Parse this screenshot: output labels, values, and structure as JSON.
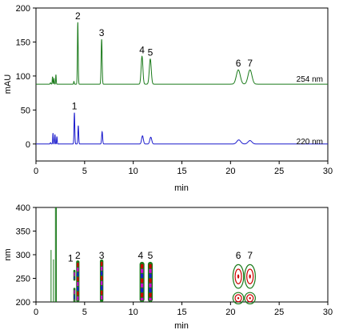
{
  "chart_data": [
    {
      "type": "line",
      "xlabel": "min",
      "ylabel": "mAU",
      "xlim": [
        0,
        30
      ],
      "ylim": [
        -25,
        200
      ],
      "xticks": [
        "0",
        "5",
        "10",
        "15",
        "20",
        "25",
        "30"
      ],
      "yticks": [
        "0",
        "50",
        "100",
        "150",
        "200"
      ],
      "grid": false,
      "series": [
        {
          "name": "254 nm",
          "color": "#1a7a1a",
          "baseline": 88,
          "peaks": [
            {
              "t": 1.5,
              "h": 2,
              "w": 0.04
            },
            {
              "t": 1.7,
              "h": 11,
              "w": 0.03
            },
            {
              "t": 1.85,
              "h": 8,
              "w": 0.03
            },
            {
              "t": 2.05,
              "h": 14,
              "w": 0.03
            },
            {
              "t": 3.9,
              "h": 4,
              "w": 0.03
            },
            {
              "t": 4.3,
              "h": 91,
              "w": 0.04
            },
            {
              "t": 6.75,
              "h": 66,
              "w": 0.05
            },
            {
              "t": 10.9,
              "h": 41,
              "w": 0.09
            },
            {
              "t": 11.75,
              "h": 37,
              "w": 0.1
            },
            {
              "t": 20.8,
              "h": 21,
              "w": 0.2
            },
            {
              "t": 22.0,
              "h": 21,
              "w": 0.2
            }
          ]
        },
        {
          "name": "220 nm",
          "color": "#1a1acc",
          "baseline": 0,
          "peaks": [
            {
              "t": 1.5,
              "h": 2,
              "w": 0.04
            },
            {
              "t": 1.75,
              "h": 16,
              "w": 0.03
            },
            {
              "t": 1.95,
              "h": 14,
              "w": 0.03
            },
            {
              "t": 2.15,
              "h": 11,
              "w": 0.03
            },
            {
              "t": 3.95,
              "h": 46,
              "w": 0.04
            },
            {
              "t": 4.35,
              "h": 27,
              "w": 0.04
            },
            {
              "t": 6.8,
              "h": 18,
              "w": 0.05
            },
            {
              "t": 10.95,
              "h": 12,
              "w": 0.09
            },
            {
              "t": 11.8,
              "h": 10,
              "w": 0.1
            },
            {
              "t": 20.85,
              "h": 6,
              "w": 0.2
            },
            {
              "t": 22.0,
              "h": 5,
              "w": 0.2
            }
          ]
        }
      ],
      "peak_labels": [
        {
          "label": "2",
          "t": 4.3,
          "value": 179
        },
        {
          "label": "3",
          "t": 6.75,
          "value": 154
        },
        {
          "label": "4",
          "t": 10.9,
          "value": 129
        },
        {
          "label": "5",
          "t": 11.75,
          "value": 125
        },
        {
          "label": "6",
          "t": 20.8,
          "value": 109
        },
        {
          "label": "7",
          "t": 22.0,
          "value": 109
        },
        {
          "label": "1",
          "t": 3.95,
          "value": 46
        }
      ]
    },
    {
      "type": "heatmap",
      "xlabel": "min",
      "ylabel": "nm",
      "xlim": [
        0,
        30
      ],
      "ylim": [
        200,
        400
      ],
      "xticks": [
        "0",
        "5",
        "10",
        "15",
        "20",
        "25",
        "30"
      ],
      "yticks": [
        "200",
        "250",
        "300",
        "350",
        "400"
      ],
      "grid": false,
      "bands": [
        {
          "t": 1.55,
          "w": 0.06,
          "lo": 200,
          "hi": 310,
          "color": "#1a7a1a"
        },
        {
          "t": 1.8,
          "w": 0.06,
          "lo": 200,
          "hi": 290,
          "color": "#1a7a1a"
        },
        {
          "t": 2.0,
          "w": 0.07,
          "lo": 200,
          "hi": 400,
          "color": "#1a7a1a"
        },
        {
          "t": 2.1,
          "w": 0.06,
          "lo": 200,
          "hi": 400,
          "color": "#1a7a1a"
        }
      ],
      "spots": [
        {
          "t": 3.95,
          "w": 0.22,
          "lo": 200,
          "hi": 230,
          "colors": [
            "#1a7a1a",
            "#cc00cc",
            "#1a1acc"
          ]
        },
        {
          "t": 3.95,
          "w": 0.22,
          "lo": 245,
          "hi": 268,
          "colors": [
            "#1a7a1a",
            "#cc00cc",
            "#1a1acc"
          ]
        },
        {
          "t": 4.3,
          "w": 0.34,
          "lo": 200,
          "hi": 288,
          "colors": [
            "#1a7a1a",
            "#cc0000",
            "#cc00cc",
            "#1a1acc"
          ]
        },
        {
          "t": 6.75,
          "w": 0.36,
          "lo": 200,
          "hi": 290,
          "colors": [
            "#1a7a1a",
            "#cc0000",
            "#cc00cc",
            "#1a1acc"
          ]
        },
        {
          "t": 10.9,
          "w": 0.5,
          "lo": 200,
          "hi": 285,
          "colors": [
            "#1a7a1a",
            "#cc0000",
            "#cc00cc",
            "#1a1acc"
          ]
        },
        {
          "t": 11.75,
          "w": 0.5,
          "lo": 200,
          "hi": 285,
          "colors": [
            "#1a7a1a",
            "#cc0000",
            "#cc00cc",
            "#1a1acc"
          ]
        }
      ],
      "contours": [
        {
          "t": 20.8,
          "nm": 254,
          "rx": 0.55,
          "ry": 25
        },
        {
          "t": 22.0,
          "nm": 254,
          "rx": 0.55,
          "ry": 25
        },
        {
          "t": 20.8,
          "nm": 208,
          "rx": 0.55,
          "ry": 12
        },
        {
          "t": 22.0,
          "nm": 208,
          "rx": 0.55,
          "ry": 12
        }
      ],
      "peak_labels": [
        {
          "label": "1",
          "t": 3.55,
          "nm": 292
        },
        {
          "label": "2",
          "t": 4.3,
          "nm": 298
        },
        {
          "label": "3",
          "t": 6.75,
          "nm": 298
        },
        {
          "label": "4",
          "t": 10.75,
          "nm": 298
        },
        {
          "label": "5",
          "t": 11.75,
          "nm": 298
        },
        {
          "label": "6",
          "t": 20.8,
          "nm": 298
        },
        {
          "label": "7",
          "t": 22.0,
          "nm": 298
        }
      ]
    }
  ]
}
